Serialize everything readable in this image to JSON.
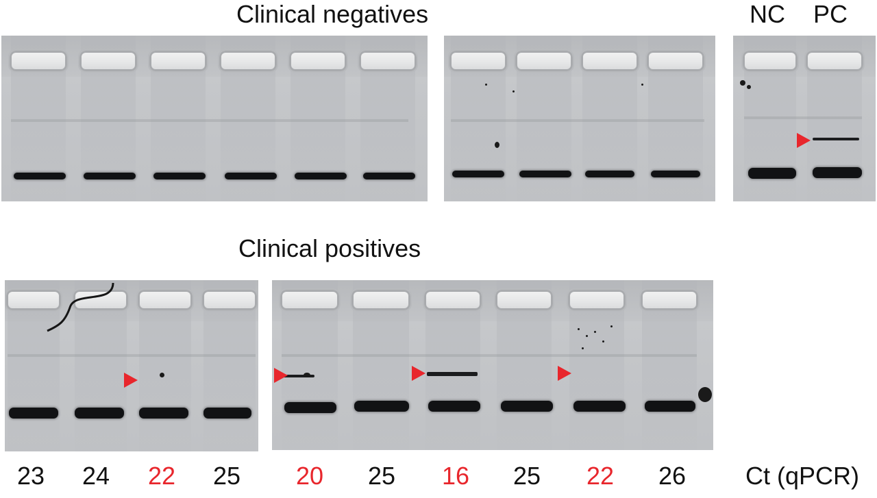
{
  "titles": {
    "negatives": "Clinical negatives",
    "positives": "Clinical positives"
  },
  "control_labels": {
    "nc": "NC",
    "pc": "PC"
  },
  "ct_axis_label": "Ct (qPCR)",
  "ct_values": [
    {
      "value": "23",
      "color": "#111111"
    },
    {
      "value": "24",
      "color": "#111111"
    },
    {
      "value": "22",
      "color": "#e8262c"
    },
    {
      "value": "25",
      "color": "#111111"
    },
    {
      "value": "20",
      "color": "#e8262c"
    },
    {
      "value": "25",
      "color": "#111111"
    },
    {
      "value": "16",
      "color": "#e8262c"
    },
    {
      "value": "25",
      "color": "#111111"
    },
    {
      "value": "22",
      "color": "#e8262c"
    },
    {
      "value": "26",
      "color": "#111111"
    }
  ],
  "colors": {
    "marker": "#e8262c",
    "band": "#111214",
    "gel": "#c4c6c9"
  }
}
